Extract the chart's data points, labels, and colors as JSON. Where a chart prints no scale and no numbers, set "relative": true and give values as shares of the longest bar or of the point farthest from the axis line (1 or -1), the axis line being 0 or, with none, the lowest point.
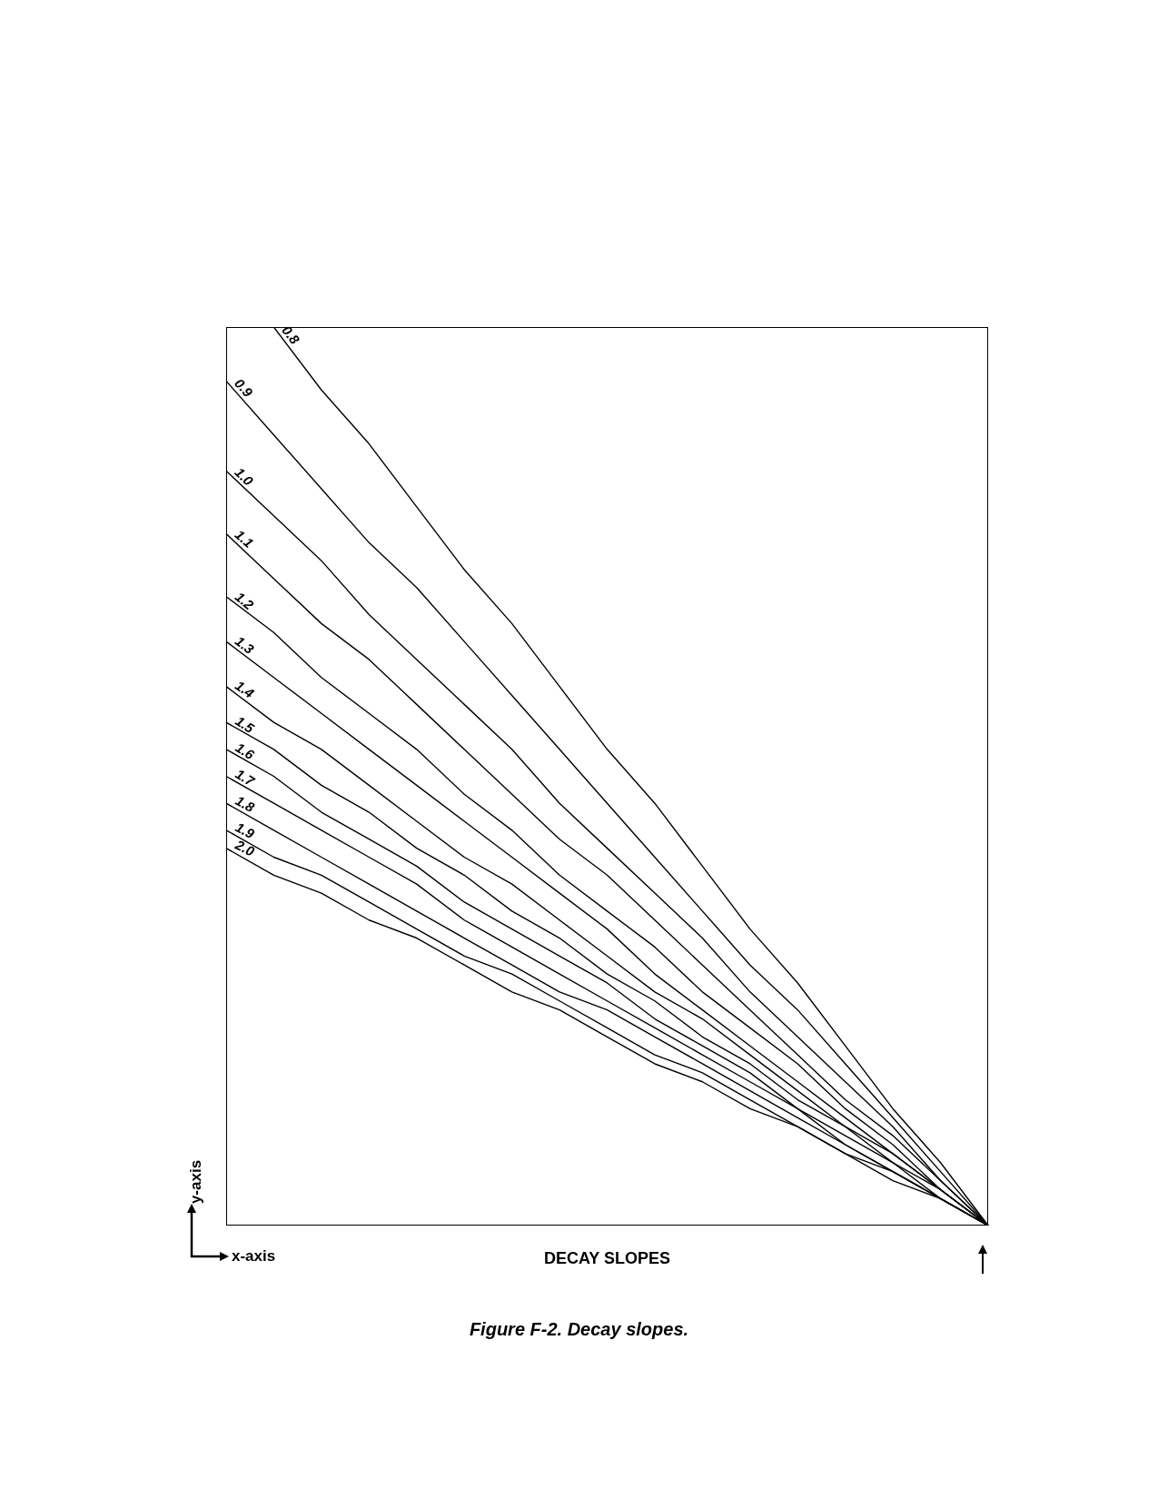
{
  "chart_data": {
    "type": "line",
    "relative": true,
    "xlabel": "DECAY SLOPES",
    "annotations": [
      "y-axis",
      "x-axis",
      "Figure F-2. Decay slopes."
    ],
    "categories": [
      null,
      null,
      null,
      null,
      null,
      null,
      null,
      null,
      null,
      null,
      null,
      null,
      null,
      null,
      null,
      null,
      null
    ],
    "series": [
      {
        "name": "0.8",
        "color": "#000000",
        "values": [
          null,
          1,
          0.93,
          0.87,
          0.8,
          0.73,
          0.67,
          0.6,
          0.53,
          0.47,
          0.4,
          0.33,
          0.27,
          0.2,
          0.13,
          0.07,
          0
        ]
      },
      {
        "name": "0.9",
        "color": "#000000",
        "values": [
          0.94,
          0.88,
          0.82,
          0.76,
          0.71,
          0.65,
          0.59,
          0.53,
          0.47,
          0.41,
          0.35,
          0.29,
          0.24,
          0.18,
          0.12,
          0.06,
          0
        ]
      },
      {
        "name": "1.0",
        "color": "#000000",
        "values": [
          0.84,
          0.79,
          0.74,
          0.68,
          0.63,
          0.58,
          0.53,
          0.47,
          0.42,
          0.37,
          0.32,
          0.26,
          0.21,
          0.16,
          0.11,
          0.05,
          0
        ]
      },
      {
        "name": "1.1",
        "color": "#000000",
        "values": [
          0.77,
          0.72,
          0.67,
          0.63,
          0.58,
          0.53,
          0.48,
          0.43,
          0.39,
          0.34,
          0.29,
          0.24,
          0.19,
          0.14,
          0.1,
          0.05,
          0
        ]
      },
      {
        "name": "1.2",
        "color": "#000000",
        "values": [
          0.7,
          0.66,
          0.61,
          0.57,
          0.53,
          0.48,
          0.44,
          0.39,
          0.35,
          0.31,
          0.26,
          0.22,
          0.18,
          0.13,
          0.09,
          0.04,
          0
        ]
      },
      {
        "name": "1.3",
        "color": "#000000",
        "values": [
          0.65,
          0.61,
          0.57,
          0.53,
          0.49,
          0.45,
          0.41,
          0.37,
          0.33,
          0.28,
          0.24,
          0.2,
          0.16,
          0.12,
          0.08,
          0.04,
          0
        ]
      },
      {
        "name": "1.4",
        "color": "#000000",
        "values": [
          0.6,
          0.56,
          0.53,
          0.49,
          0.45,
          0.41,
          0.38,
          0.34,
          0.3,
          0.26,
          0.23,
          0.19,
          0.15,
          0.11,
          0.08,
          0.04,
          0
        ]
      },
      {
        "name": "1.5",
        "color": "#000000",
        "values": [
          0.56,
          0.53,
          0.49,
          0.46,
          0.42,
          0.39,
          0.35,
          0.32,
          0.28,
          0.25,
          0.21,
          0.18,
          0.14,
          0.11,
          0.07,
          0.04,
          0
        ]
      },
      {
        "name": "1.6",
        "color": "#000000",
        "values": [
          0.53,
          0.5,
          0.46,
          0.43,
          0.4,
          0.36,
          0.33,
          0.3,
          0.27,
          0.23,
          0.2,
          0.17,
          0.13,
          0.1,
          0.07,
          0.03,
          0
        ]
      },
      {
        "name": "1.7",
        "color": "#000000",
        "values": [
          0.5,
          0.47,
          0.44,
          0.41,
          0.38,
          0.34,
          0.31,
          0.28,
          0.25,
          0.22,
          0.19,
          0.16,
          0.13,
          0.09,
          0.06,
          0.03,
          0
        ]
      },
      {
        "name": "1.8",
        "color": "#000000",
        "values": [
          0.47,
          0.44,
          0.41,
          0.38,
          0.35,
          0.32,
          0.29,
          0.26,
          0.24,
          0.21,
          0.18,
          0.15,
          0.12,
          0.09,
          0.06,
          0.03,
          0
        ]
      },
      {
        "name": "1.9",
        "color": "#000000",
        "values": [
          0.44,
          0.41,
          0.39,
          0.36,
          0.33,
          0.3,
          0.28,
          0.25,
          0.22,
          0.19,
          0.17,
          0.14,
          0.11,
          0.08,
          0.06,
          0.03,
          0
        ]
      },
      {
        "name": "2.0",
        "color": "#000000",
        "values": [
          0.42,
          0.39,
          0.37,
          0.34,
          0.32,
          0.29,
          0.26,
          0.24,
          0.21,
          0.18,
          0.16,
          0.13,
          0.11,
          0.08,
          0.05,
          0.03,
          0
        ]
      }
    ]
  }
}
